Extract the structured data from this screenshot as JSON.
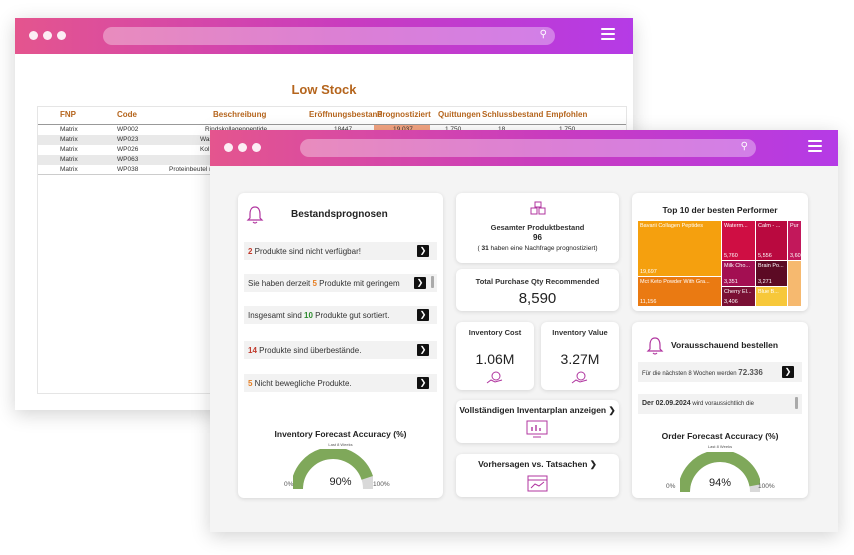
{
  "back_window": {
    "title": "Low Stock",
    "columns": [
      "FNP",
      "Code",
      "Beschreibung",
      "Eröffnungsbestand",
      "Prognostiziert",
      "Quittungen",
      "Schlussbestand",
      "Empfohlen"
    ],
    "rows": [
      {
        "fnp": "Matrix",
        "code": "WP002",
        "desc": "Rindskollagenpeptide",
        "open": "18447",
        "prog": "19.037",
        "quit": "1.750",
        "close": "18",
        "emp": "1.750"
      },
      {
        "fnp": "Matrix",
        "code": "WP023",
        "desc": "Was",
        "open": "",
        "prog": "",
        "quit": "",
        "close": "",
        "emp": ""
      },
      {
        "fnp": "Matrix",
        "code": "WP026",
        "desc": "Kol",
        "open": "",
        "prog": "",
        "quit": "",
        "close": "",
        "emp": ""
      },
      {
        "fnp": "Matrix",
        "code": "WP063",
        "desc": "",
        "open": "",
        "prog": "",
        "quit": "",
        "close": "",
        "emp": ""
      },
      {
        "fnp": "Matrix",
        "code": "WP038",
        "desc": "Proteinbeutel n",
        "open": "",
        "prog": "",
        "quit": "",
        "close": "",
        "emp": ""
      }
    ]
  },
  "bestand": {
    "title": "Bestandsprognosen",
    "alerts": [
      {
        "num": "2",
        "text": " Produkte sind nicht verfügbar!",
        "color": "red",
        "before": ""
      },
      {
        "before": "Sie haben derzeit ",
        "num": "5",
        "text": " Produkte mit geringem",
        "color": "orange"
      },
      {
        "before": "Insgesamt sind ",
        "num": "10",
        "text": " Produkte gut sortiert.",
        "color": "green"
      },
      {
        "before": "",
        "num": "14",
        "text": " Produkte sind überbestände.",
        "color": "red"
      },
      {
        "before": "",
        "num": "5",
        "text": " Nicht bewegliche Produkte.",
        "color": "orange"
      }
    ],
    "accuracy_title": "Inventory Forecast Accuracy (%)",
    "accuracy_sub": "Last 8 Weeks",
    "accuracy_value": "90%",
    "accuracy_fraction": 0.9,
    "min_label": "0%",
    "max_label": "100%"
  },
  "produktbestand": {
    "title": "Gesamter Produktbestand",
    "value": "96",
    "note_open": "(",
    "note_num": "31",
    "note_text": "haben eine Nachfrage prognostiziert)"
  },
  "purchase": {
    "title": "Total Purchase Qty Recommended",
    "value": "8,590"
  },
  "inv_cost": {
    "title": "Inventory Cost",
    "value": "1.06M"
  },
  "inv_value": {
    "title": "Inventory Value",
    "value": "3.27M"
  },
  "plan_link": "Vollständigen Inventarplan anzeigen",
  "forecast_link": "Vorhersagen vs. Tatsachen",
  "top10": {
    "title": "Top 10 der besten Performer",
    "cells": [
      {
        "label": "Bavarii Collagen Peptides",
        "value": "19,697",
        "color": "#f5a00e"
      },
      {
        "label": "Mct Keto Powder With Gra...",
        "value": "11,156",
        "color": "#ea7a12"
      },
      {
        "label": "Waterm...",
        "value": "5,760",
        "color": "#cf0e43"
      },
      {
        "label": "Calm - ...",
        "value": "5,556",
        "color": "#b9093f"
      },
      {
        "label": "Pur",
        "value": "3,609",
        "color": "#c2185b"
      },
      {
        "label": "Milk Cho...",
        "value": "3,351",
        "color": "#a30f52"
      },
      {
        "label": "Brain Po...",
        "value": "3,271",
        "color": "#5c0a24"
      },
      {
        "label": "Cherry El...",
        "value": "3,406",
        "color": "#7a1034"
      },
      {
        "label": "Blue B...",
        "value": "",
        "color": "#f7c83a"
      },
      {
        "label": "",
        "value": "",
        "color": "#f6b96f"
      }
    ]
  },
  "vorausschauend": {
    "title": "Vorausschauend bestellen",
    "row1_text": "Für die nächsten 8 Wochen werden",
    "row1_num": "72.336",
    "row2_date": "Der 02.09.2024",
    "row2_text": "wird voraussichtlich die",
    "accuracy_title": "Order Forecast Accuracy (%)",
    "accuracy_sub": "Last 8 Weeks",
    "accuracy_value": "94%",
    "accuracy_fraction": 0.94,
    "min_label": "0%",
    "max_label": "100%"
  },
  "colors": {
    "accent": "#b53be6",
    "gauge": "#7fa85a",
    "gauge_bg": "#d9d9d9",
    "icon": "#b0359f"
  }
}
